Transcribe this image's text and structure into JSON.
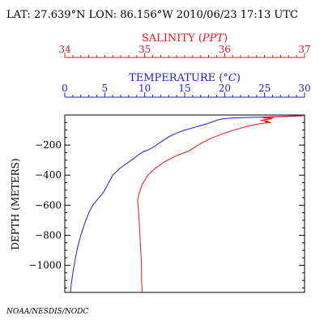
{
  "header": {
    "location_time": "LAT: 27.639°N LON: 86.156°W 2010/06/23 17:13 UTC"
  },
  "credit": "NOAA/NESDIS/NODC",
  "colors": {
    "salinity": "#e8191a",
    "temperature": "#1a1ae8",
    "axis": "#000000"
  },
  "chart_data": {
    "type": "line",
    "title": "",
    "ylabel": "DEPTH (METERS)",
    "ylim": [
      0,
      1180
    ],
    "y_reversed": true,
    "y_ticks": [
      -200,
      -400,
      -600,
      -800,
      -1000
    ],
    "grid": false,
    "axes": {
      "salinity": {
        "label_text": "SALINITY (",
        "label_unit": "PPT",
        "label_close": ")",
        "range": [
          34,
          37
        ],
        "ticks": [
          34,
          35,
          36,
          37
        ]
      },
      "temperature": {
        "label_text": "TEMPERATURE (",
        "label_unit": "°C",
        "label_close": ")",
        "range": [
          0,
          30
        ],
        "ticks": [
          0,
          5,
          10,
          15,
          20,
          25,
          30
        ]
      }
    },
    "series": [
      {
        "axis": "temperature",
        "points": [
          [
            30.0,
            3
          ],
          [
            29.5,
            6
          ],
          [
            27.5,
            10
          ],
          [
            24.5,
            14
          ],
          [
            22.0,
            18
          ],
          [
            20.3,
            22
          ],
          [
            19.5,
            28
          ],
          [
            19.0,
            35
          ],
          [
            18.5,
            45
          ],
          [
            18.0,
            55
          ],
          [
            17.3,
            65
          ],
          [
            16.7,
            75
          ],
          [
            16.0,
            85
          ],
          [
            15.0,
            100
          ],
          [
            14.0,
            120
          ],
          [
            13.0,
            145
          ],
          [
            12.0,
            180
          ],
          [
            11.2,
            210
          ],
          [
            10.5,
            230
          ],
          [
            9.8,
            245
          ],
          [
            9.2,
            265
          ],
          [
            8.6,
            290
          ],
          [
            7.8,
            320
          ],
          [
            7.0,
            350
          ],
          [
            6.5,
            375
          ],
          [
            6.0,
            400
          ],
          [
            5.7,
            430
          ],
          [
            5.3,
            470
          ],
          [
            5.0,
            500
          ],
          [
            4.6,
            530
          ],
          [
            4.1,
            560
          ],
          [
            3.5,
            600
          ],
          [
            3.0,
            650
          ],
          [
            2.5,
            720
          ],
          [
            2.0,
            800
          ],
          [
            1.6,
            880
          ],
          [
            1.3,
            960
          ],
          [
            1.0,
            1050
          ],
          [
            0.8,
            1130
          ],
          [
            0.7,
            1180
          ]
        ]
      },
      {
        "axis": "salinity",
        "points": [
          [
            37.0,
            3
          ],
          [
            36.75,
            8
          ],
          [
            36.5,
            13
          ],
          [
            36.62,
            16
          ],
          [
            36.48,
            20
          ],
          [
            36.6,
            25
          ],
          [
            36.52,
            30
          ],
          [
            36.45,
            35
          ],
          [
            36.55,
            40
          ],
          [
            36.5,
            45
          ],
          [
            36.58,
            50
          ],
          [
            36.48,
            55
          ],
          [
            36.42,
            60
          ],
          [
            36.32,
            70
          ],
          [
            36.25,
            80
          ],
          [
            36.15,
            95
          ],
          [
            36.0,
            120
          ],
          [
            35.85,
            150
          ],
          [
            35.7,
            190
          ],
          [
            35.55,
            240
          ],
          [
            35.4,
            270
          ],
          [
            35.25,
            310
          ],
          [
            35.12,
            360
          ],
          [
            35.04,
            400
          ],
          [
            34.97,
            460
          ],
          [
            34.93,
            520
          ],
          [
            34.91,
            570
          ],
          [
            34.92,
            620
          ],
          [
            34.93,
            700
          ],
          [
            34.94,
            800
          ],
          [
            34.95,
            900
          ],
          [
            34.96,
            1000
          ],
          [
            34.96,
            1100
          ],
          [
            34.97,
            1180
          ]
        ]
      }
    ]
  }
}
